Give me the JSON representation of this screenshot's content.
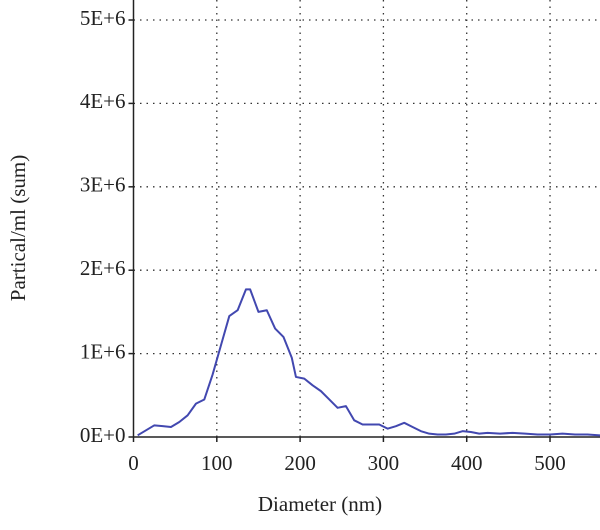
{
  "chart_data": {
    "type": "line",
    "x_label": "Diameter (nm)",
    "y_label": "Partical/ml (sum)",
    "x": [
      5,
      15,
      25,
      35,
      45,
      55,
      65,
      75,
      85,
      95,
      105,
      115,
      125,
      135,
      140,
      150,
      160,
      170,
      180,
      190,
      195,
      205,
      215,
      225,
      235,
      245,
      255,
      265,
      275,
      285,
      295,
      305,
      315,
      325,
      335,
      345,
      355,
      365,
      375,
      385,
      395,
      405,
      415,
      425,
      440,
      455,
      470,
      485,
      500,
      515,
      530,
      545,
      560
    ],
    "values": [
      20000,
      80000,
      140000,
      130000,
      120000,
      180000,
      260000,
      400000,
      450000,
      750000,
      1100000,
      1450000,
      1520000,
      1770000,
      1770000,
      1500000,
      1520000,
      1300000,
      1200000,
      950000,
      720000,
      700000,
      620000,
      550000,
      450000,
      350000,
      370000,
      200000,
      150000,
      150000,
      150000,
      100000,
      130000,
      170000,
      120000,
      70000,
      40000,
      30000,
      30000,
      40000,
      70000,
      60000,
      40000,
      50000,
      40000,
      50000,
      40000,
      30000,
      30000,
      40000,
      30000,
      30000,
      20000
    ],
    "color": "#4248b0",
    "xlim": [
      0,
      560
    ],
    "xticks": [
      0,
      100,
      200,
      300,
      400,
      500
    ],
    "ylim": [
      0,
      5240000
    ],
    "yticks": [
      {
        "value": 0,
        "label": "0E+0"
      },
      {
        "value": 1000000,
        "label": "1E+6"
      },
      {
        "value": 2000000,
        "label": "2E+6"
      },
      {
        "value": 3000000,
        "label": "3E+6"
      },
      {
        "value": 4000000,
        "label": "4E+6"
      },
      {
        "value": 5000000,
        "label": "5E+6"
      }
    ],
    "grid": true
  }
}
